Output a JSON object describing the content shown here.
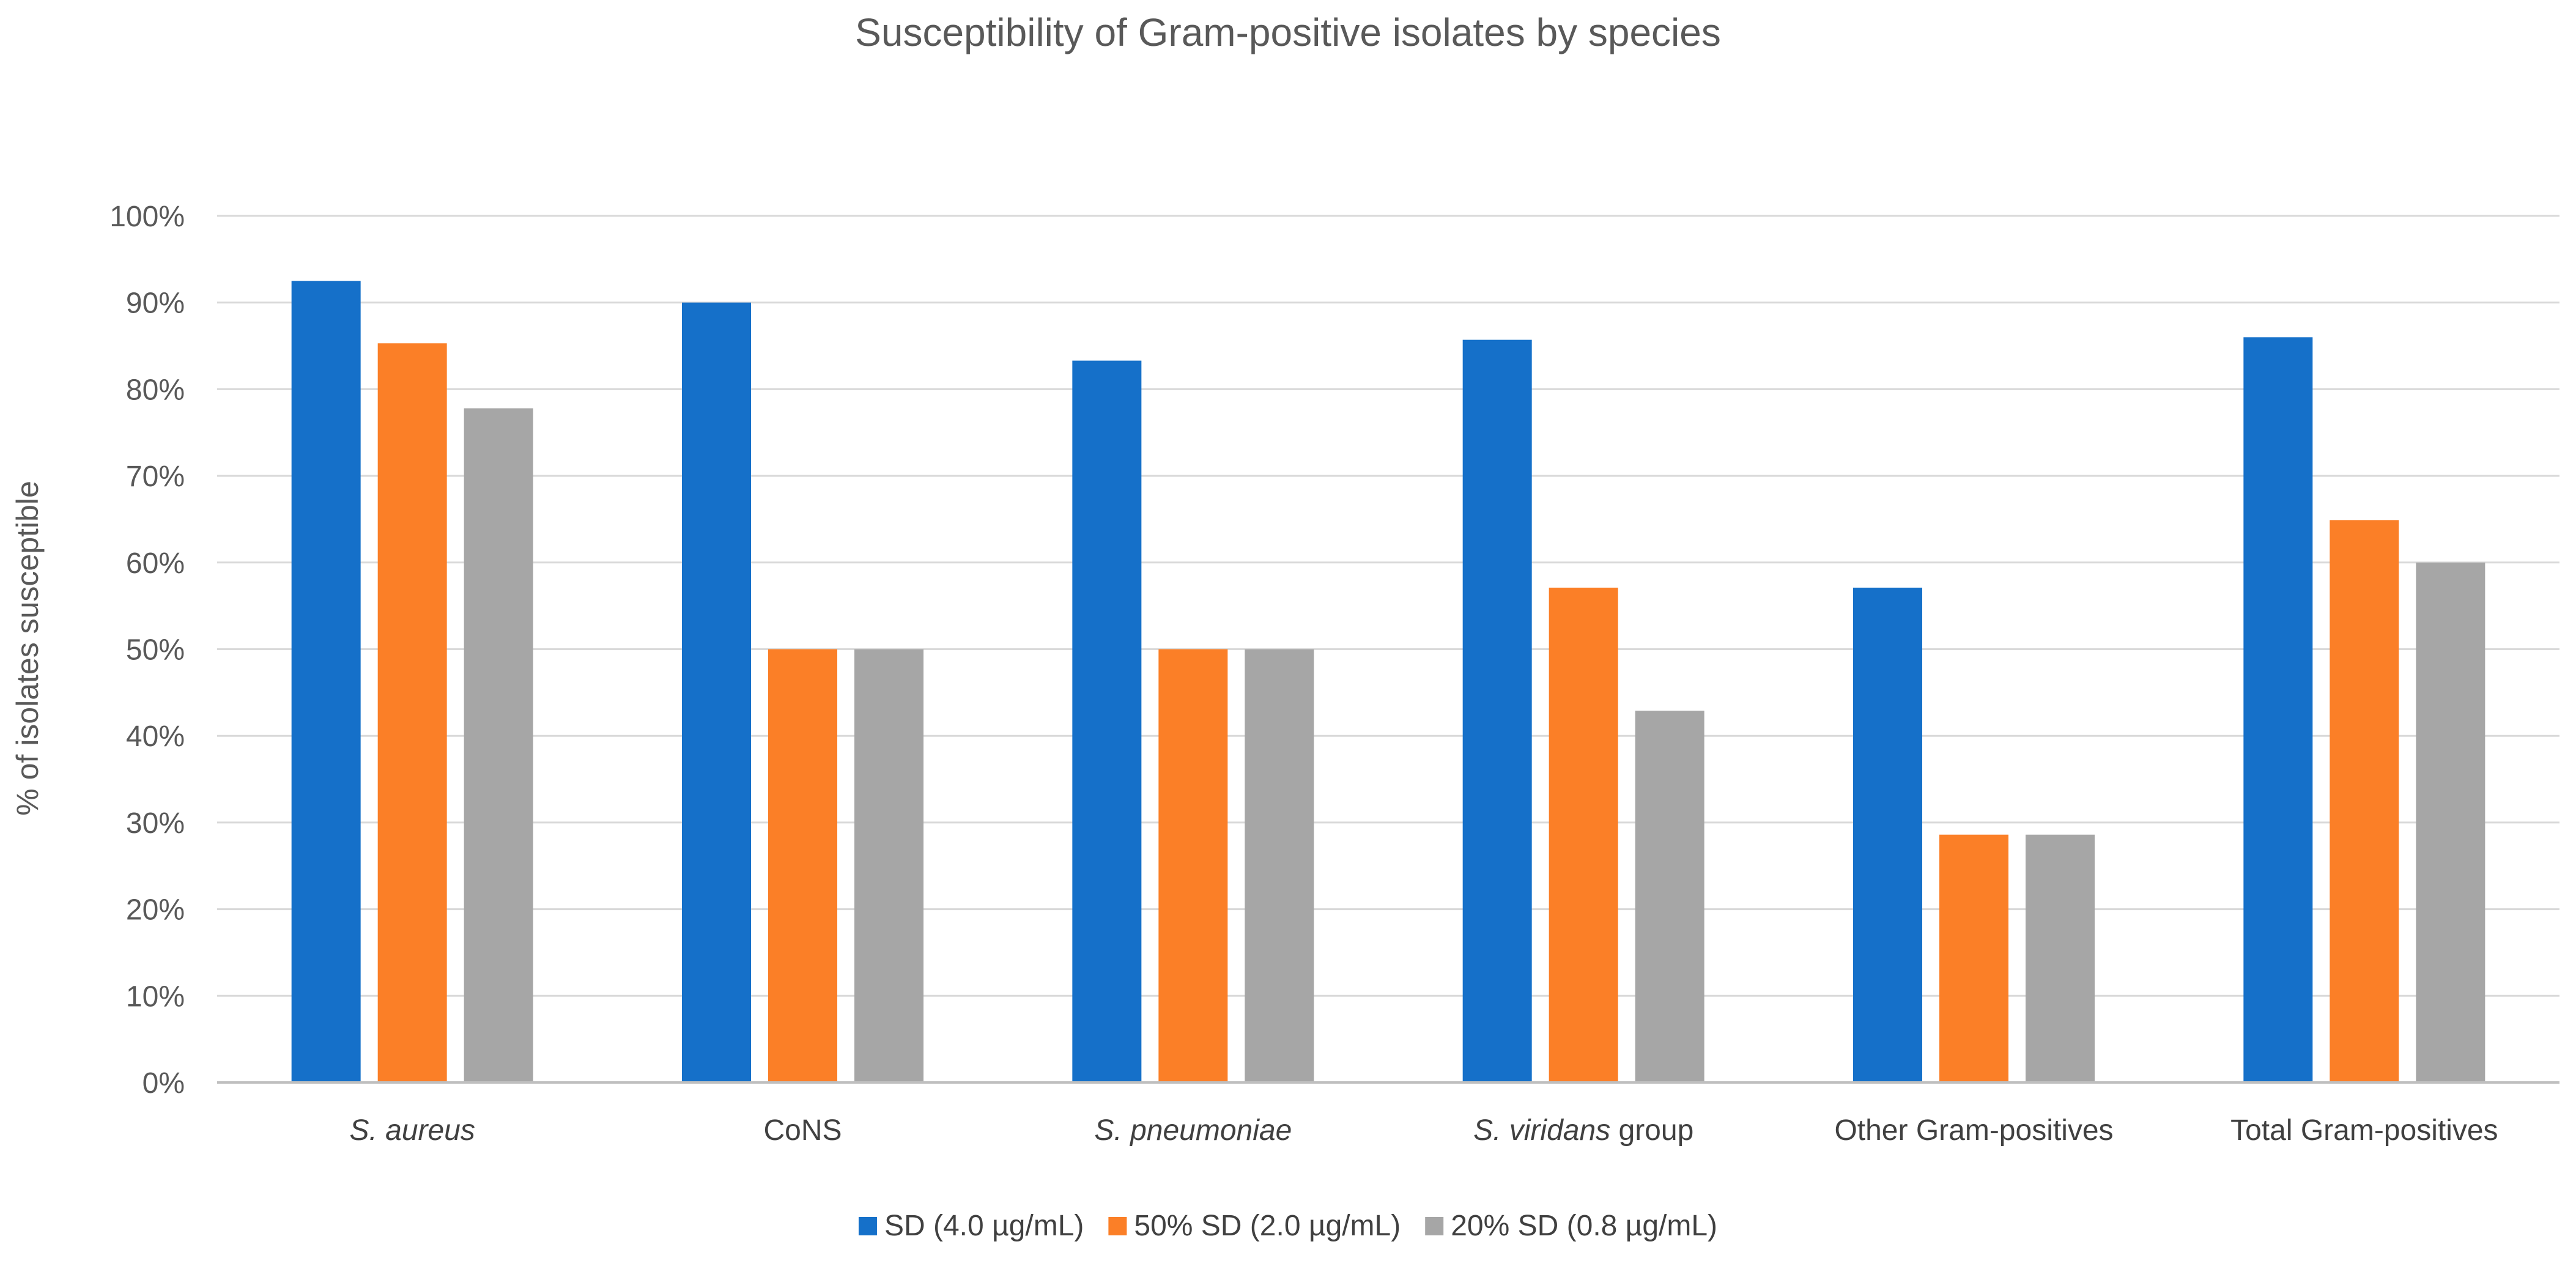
{
  "chart_data": {
    "type": "bar",
    "title": "Susceptibility of Gram-positive isolates by species",
    "xlabel": "",
    "ylabel": "% of isolates susceptible",
    "ylim": [
      0,
      100
    ],
    "yticks": [
      "0%",
      "10%",
      "20%",
      "30%",
      "40%",
      "50%",
      "60%",
      "70%",
      "80%",
      "90%",
      "100%"
    ],
    "grid": true,
    "legend_position": "bottom",
    "categories": [
      [
        {
          "text": "S. aureus",
          "italic": true
        }
      ],
      [
        {
          "text": "CoNS",
          "italic": false
        }
      ],
      [
        {
          "text": "S. pneumoniae",
          "italic": true
        }
      ],
      [
        {
          "text": "S. viridans",
          "italic": true
        },
        {
          "text": " group",
          "italic": false
        }
      ],
      [
        {
          "text": "Other Gram-positives",
          "italic": false
        }
      ],
      [
        {
          "text": "Total Gram-positives",
          "italic": false
        }
      ]
    ],
    "series": [
      {
        "name": "SD (4.0 µg/mL)",
        "color": "#1570C9",
        "values": [
          92.5,
          90,
          83.3,
          85.7,
          57.1,
          86.0
        ]
      },
      {
        "name": "50% SD (2.0 µg/mL)",
        "color": "#FB7F27",
        "values": [
          85.3,
          50,
          50,
          57.1,
          28.6,
          64.9
        ]
      },
      {
        "name": "20% SD (0.8 µg/mL)",
        "color": "#A6A6A6",
        "values": [
          77.8,
          50,
          50,
          42.9,
          28.6,
          60.0
        ]
      }
    ]
  }
}
